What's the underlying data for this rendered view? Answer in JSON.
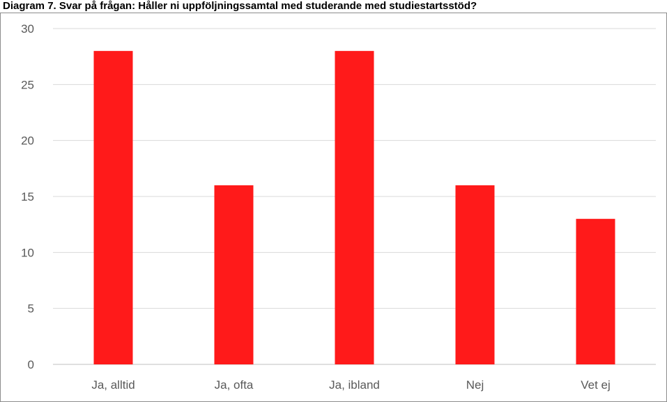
{
  "title": "Diagram 7. Svar på frågan: Håller ni uppföljningssamtal med studerande med studiestartsstöd?",
  "chart_data": {
    "type": "bar",
    "title": "Diagram 7. Svar på frågan: Håller ni uppföljningssamtal med studerande med studiestartsstöd?",
    "categories": [
      "Ja, alltid",
      "Ja, ofta",
      "Ja, ibland",
      "Nej",
      "Vet ej"
    ],
    "values": [
      28,
      16,
      28,
      16,
      13
    ],
    "ylim": [
      0,
      30
    ],
    "yticks": [
      0,
      5,
      10,
      15,
      20,
      25,
      30
    ],
    "xlabel": "",
    "ylabel": "",
    "grid": true,
    "legend": "none",
    "bar_color": "#ff1a1a",
    "grid_color": "#d9d9d9",
    "axis_color": "#bfbfbf"
  }
}
